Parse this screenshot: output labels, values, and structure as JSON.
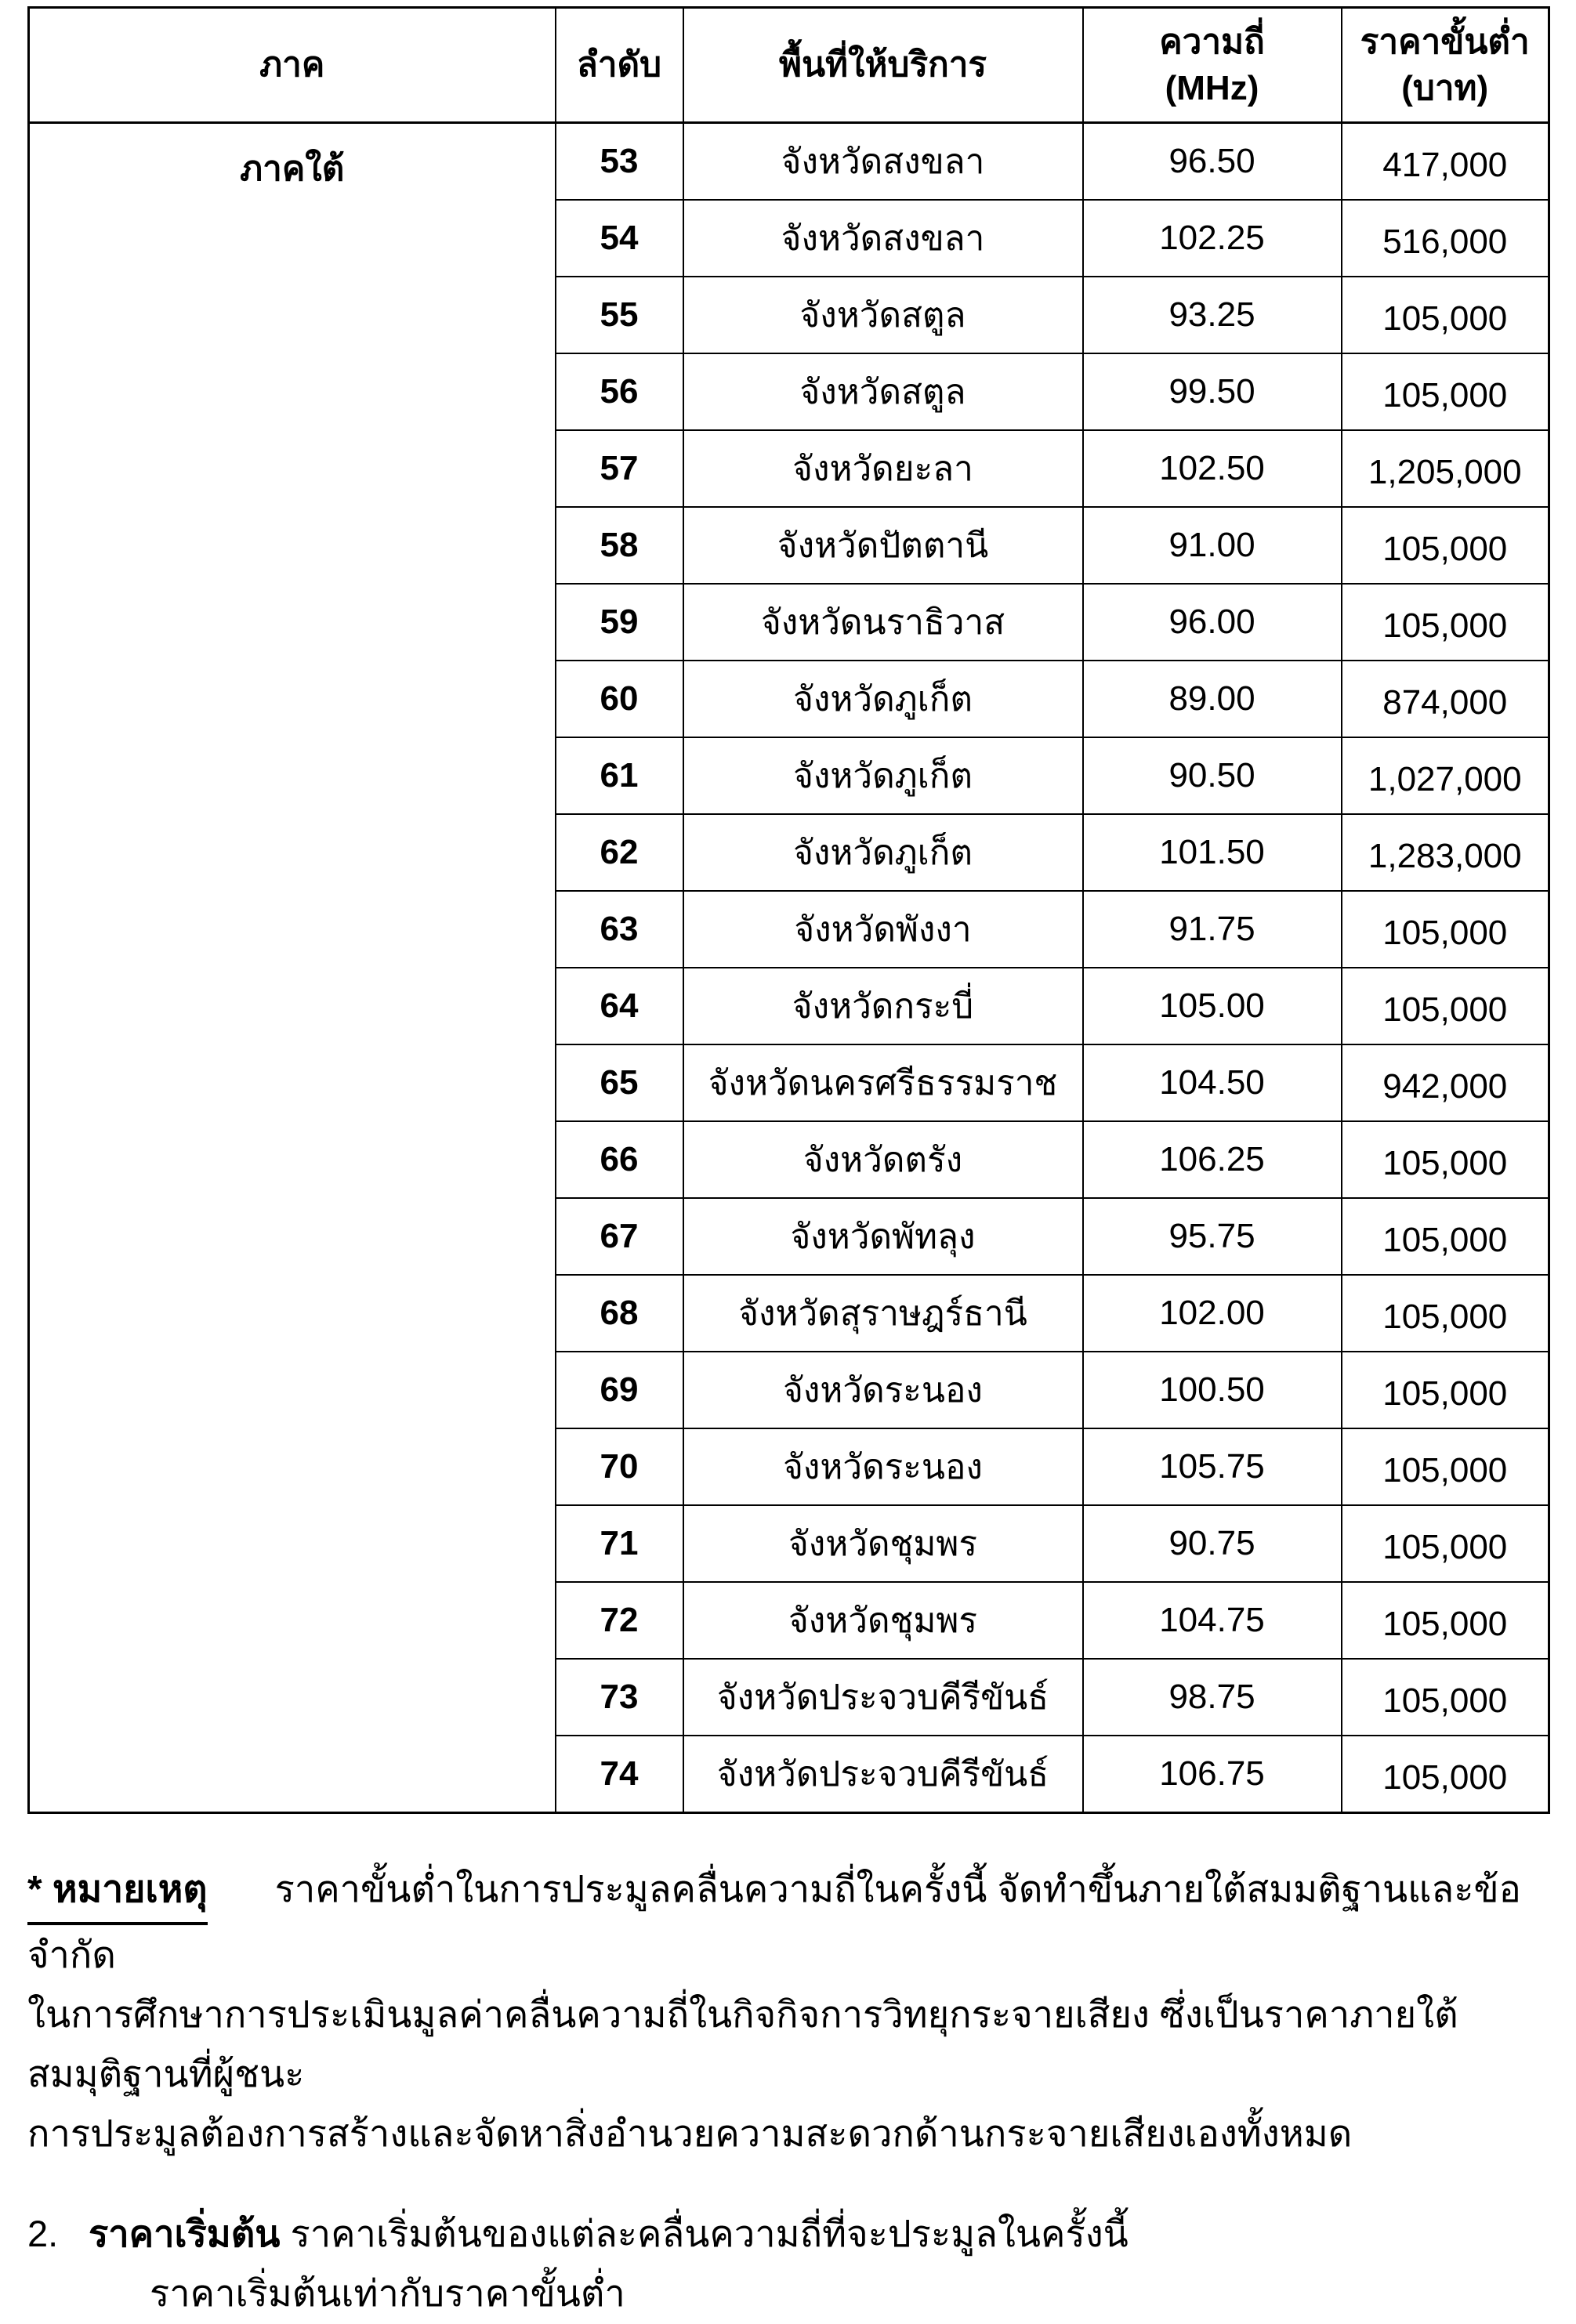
{
  "table": {
    "headers": {
      "region": "ภาค",
      "order": "ลำดับ",
      "service_area": "พื้นที่ให้บริการ",
      "frequency_line1": "ความถี่",
      "frequency_line2": "(MHz)",
      "price_line1": "ราคาขั้นต่ำ",
      "price_line2": "(บาท)"
    },
    "region_label": "ภาคใต้",
    "rows": [
      {
        "no": "53",
        "area": "จังหวัดสงขลา",
        "freq": "96.50",
        "price": "417,000"
      },
      {
        "no": "54",
        "area": "จังหวัดสงขลา",
        "freq": "102.25",
        "price": "516,000"
      },
      {
        "no": "55",
        "area": "จังหวัดสตูล",
        "freq": "93.25",
        "price": "105,000"
      },
      {
        "no": "56",
        "area": "จังหวัดสตูล",
        "freq": "99.50",
        "price": "105,000"
      },
      {
        "no": "57",
        "area": "จังหวัดยะลา",
        "freq": "102.50",
        "price": "1,205,000"
      },
      {
        "no": "58",
        "area": "จังหวัดปัตตานี",
        "freq": "91.00",
        "price": "105,000"
      },
      {
        "no": "59",
        "area": "จังหวัดนราธิวาส",
        "freq": "96.00",
        "price": "105,000"
      },
      {
        "no": "60",
        "area": "จังหวัดภูเก็ต",
        "freq": "89.00",
        "price": "874,000"
      },
      {
        "no": "61",
        "area": "จังหวัดภูเก็ต",
        "freq": "90.50",
        "price": "1,027,000"
      },
      {
        "no": "62",
        "area": "จังหวัดภูเก็ต",
        "freq": "101.50",
        "price": "1,283,000"
      },
      {
        "no": "63",
        "area": "จังหวัดพังงา",
        "freq": "91.75",
        "price": "105,000"
      },
      {
        "no": "64",
        "area": "จังหวัดกระบี่",
        "freq": "105.00",
        "price": "105,000"
      },
      {
        "no": "65",
        "area": "จังหวัดนครศรีธรรมราช",
        "freq": "104.50",
        "price": "942,000"
      },
      {
        "no": "66",
        "area": "จังหวัดตรัง",
        "freq": "106.25",
        "price": "105,000"
      },
      {
        "no": "67",
        "area": "จังหวัดพัทลุง",
        "freq": "95.75",
        "price": "105,000"
      },
      {
        "no": "68",
        "area": "จังหวัดสุราษฎร์ธานี",
        "freq": "102.00",
        "price": "105,000"
      },
      {
        "no": "69",
        "area": "จังหวัดระนอง",
        "freq": "100.50",
        "price": "105,000"
      },
      {
        "no": "70",
        "area": "จังหวัดระนอง",
        "freq": "105.75",
        "price": "105,000"
      },
      {
        "no": "71",
        "area": "จังหวัดชุมพร",
        "freq": "90.75",
        "price": "105,000"
      },
      {
        "no": "72",
        "area": "จังหวัดชุมพร",
        "freq": "104.75",
        "price": "105,000"
      },
      {
        "no": "73",
        "area": "จังหวัดประจวบคีรีขันธ์",
        "freq": "98.75",
        "price": "105,000"
      },
      {
        "no": "74",
        "area": "จังหวัดประจวบคีรีขันธ์",
        "freq": "106.75",
        "price": "105,000"
      }
    ]
  },
  "notes": {
    "note_label": "* หมายเหตุ",
    "note_line1": "ราคาขั้นต่ำในการประมูลคลื่นความถี่ในครั้งนี้ จัดทำขึ้นภายใต้สมมติฐานและข้อจำกัด",
    "note_line2": "ในการศึกษาการประเมินมูลค่าคลื่นความถี่ในกิจกิจการวิทยุกระจายเสียง ซึ่งเป็นราคาภายใต้สมมุติฐานที่ผู้ชนะ",
    "note_line3": "การประมูลต้องการสร้างและจัดหาสิ่งอำนวยความสะดวกด้านกระจายเสียงเองทั้งหมด",
    "item2_number": "2.",
    "item2_bold": "ราคาเริ่มต้น",
    "item2_text": " ราคาเริ่มต้นของแต่ละคลื่นความถี่ที่จะประมูลในครั้งนี้",
    "item2_line2": "ราคาเริ่มต้นเท่ากับราคาขั้นต่ำ"
  }
}
